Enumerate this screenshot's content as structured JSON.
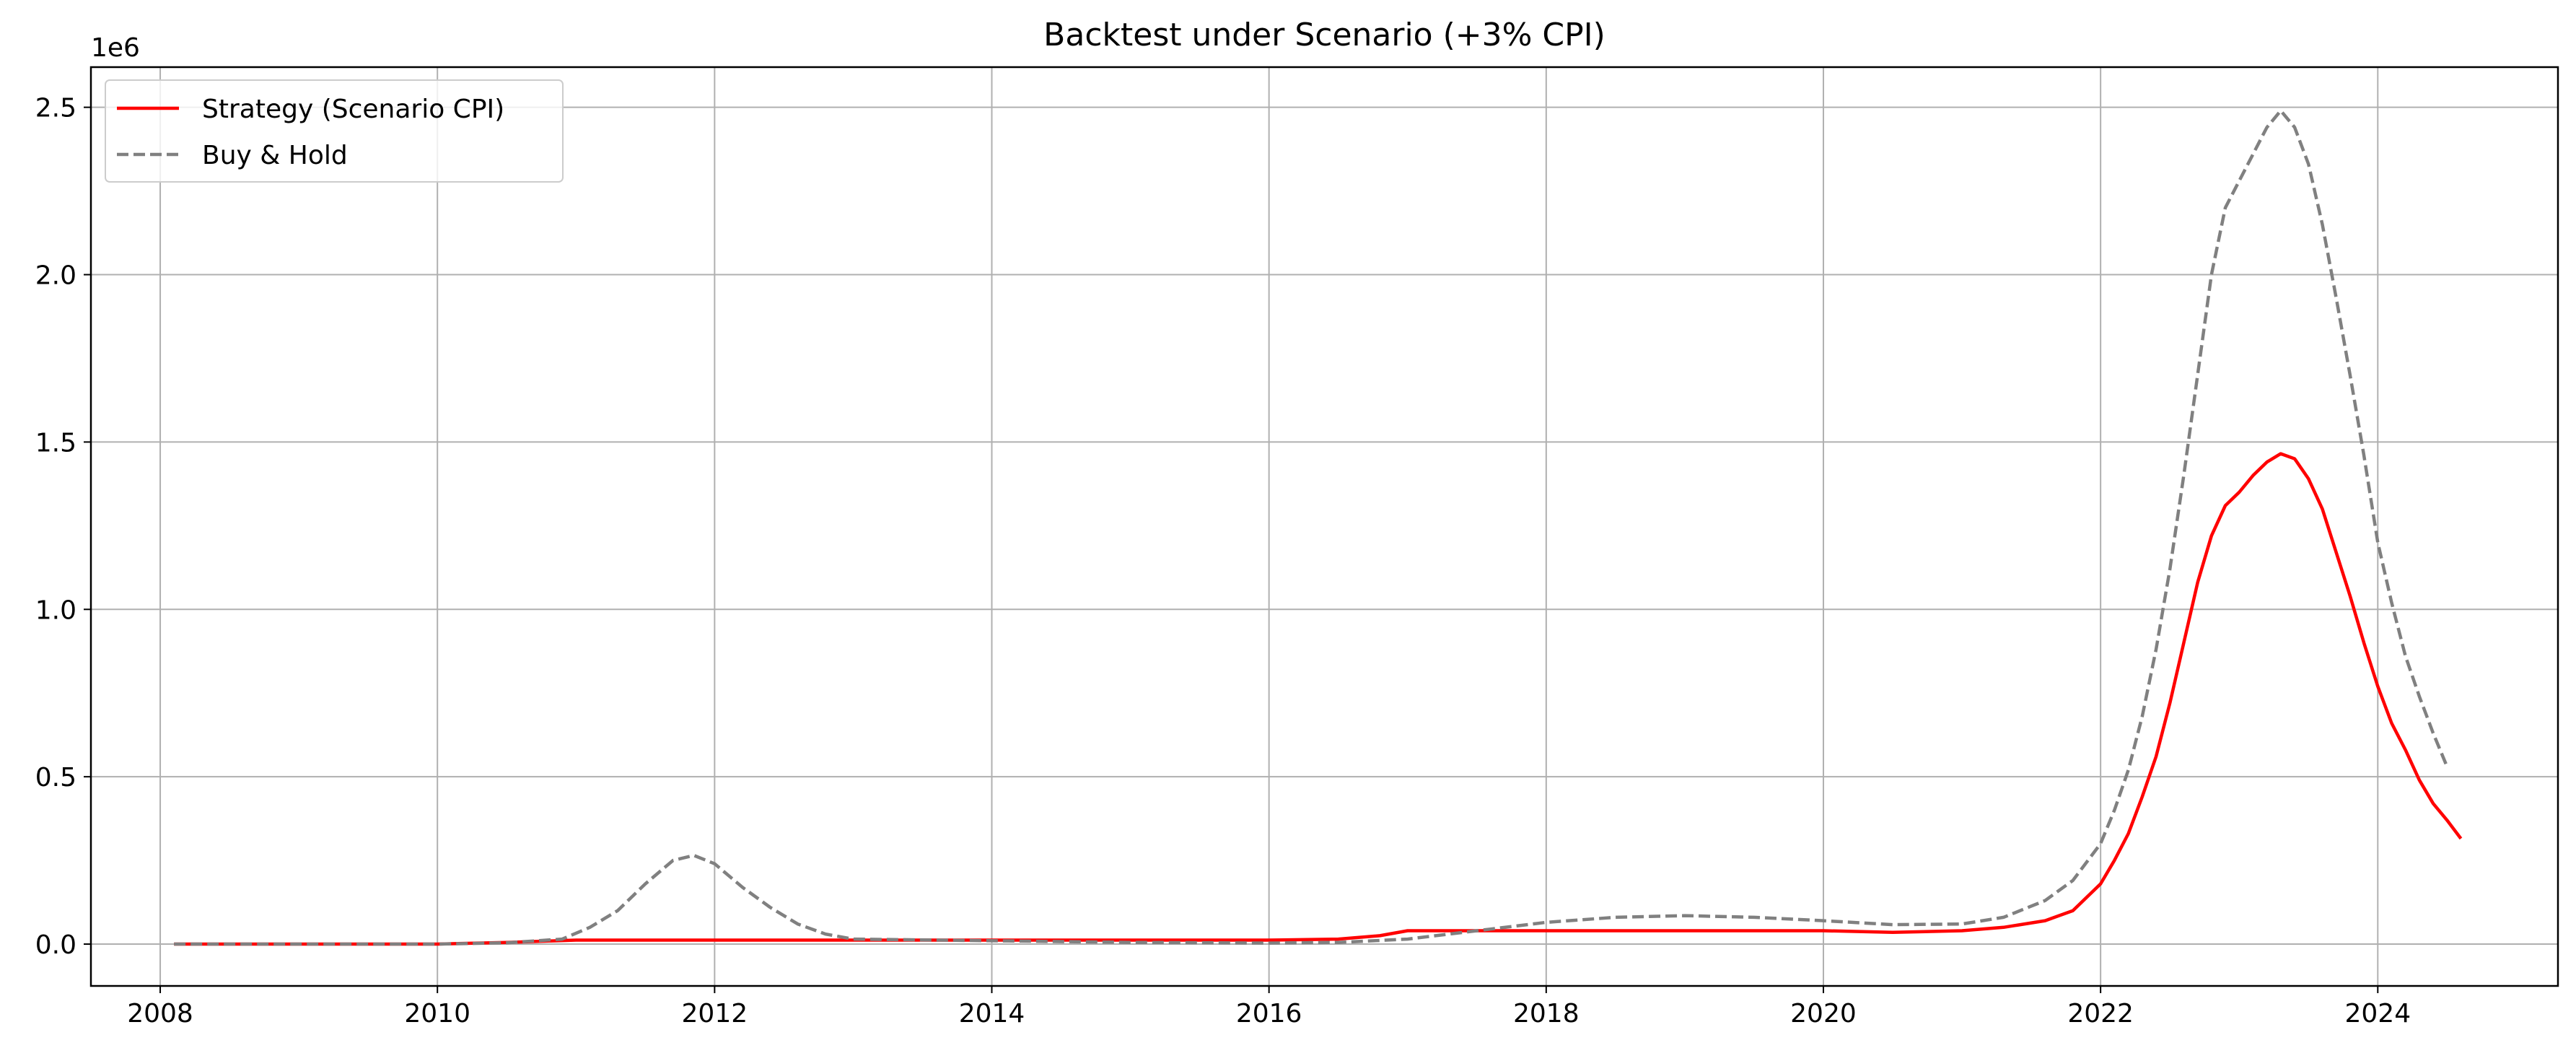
{
  "chart_data": {
    "type": "line",
    "title": "Backtest under Scenario (+3% CPI)",
    "xlabel": "",
    "ylabel": "",
    "y_offset_label": "1e6",
    "xlim": [
      2007.5,
      2025.3
    ],
    "ylim": [
      -0.125,
      2.62
    ],
    "x_ticks": [
      2008,
      2010,
      2012,
      2014,
      2016,
      2018,
      2020,
      2022,
      2024
    ],
    "y_ticks": [
      0.0,
      0.5,
      1.0,
      1.5,
      2.0,
      2.5
    ],
    "x_tick_labels": [
      "2008",
      "2010",
      "2012",
      "2014",
      "2016",
      "2018",
      "2020",
      "2022",
      "2024"
    ],
    "y_tick_labels": [
      "0.0",
      "0.5",
      "1.0",
      "1.5",
      "2.0",
      "2.5"
    ],
    "grid": true,
    "legend_position": "top-left",
    "series": [
      {
        "name": "Strategy (Scenario CPI)",
        "color": "#ff0000",
        "dash": "solid",
        "points": [
          [
            2008.1,
            0.0
          ],
          [
            2009.0,
            0.0
          ],
          [
            2010.0,
            0.0
          ],
          [
            2010.5,
            0.005
          ],
          [
            2011.0,
            0.012
          ],
          [
            2012.0,
            0.012
          ],
          [
            2014.0,
            0.012
          ],
          [
            2016.0,
            0.012
          ],
          [
            2016.5,
            0.015
          ],
          [
            2016.8,
            0.025
          ],
          [
            2017.0,
            0.04
          ],
          [
            2018.0,
            0.04
          ],
          [
            2019.0,
            0.04
          ],
          [
            2020.0,
            0.04
          ],
          [
            2020.5,
            0.035
          ],
          [
            2021.0,
            0.04
          ],
          [
            2021.3,
            0.05
          ],
          [
            2021.6,
            0.07
          ],
          [
            2021.8,
            0.1
          ],
          [
            2022.0,
            0.18
          ],
          [
            2022.1,
            0.25
          ],
          [
            2022.2,
            0.33
          ],
          [
            2022.3,
            0.44
          ],
          [
            2022.4,
            0.56
          ],
          [
            2022.5,
            0.72
          ],
          [
            2022.6,
            0.9
          ],
          [
            2022.7,
            1.08
          ],
          [
            2022.8,
            1.22
          ],
          [
            2022.9,
            1.31
          ],
          [
            2023.0,
            1.35
          ],
          [
            2023.1,
            1.4
          ],
          [
            2023.2,
            1.44
          ],
          [
            2023.3,
            1.465
          ],
          [
            2023.4,
            1.45
          ],
          [
            2023.5,
            1.39
          ],
          [
            2023.6,
            1.3
          ],
          [
            2023.7,
            1.17
          ],
          [
            2023.8,
            1.04
          ],
          [
            2023.9,
            0.9
          ],
          [
            2024.0,
            0.77
          ],
          [
            2024.1,
            0.66
          ],
          [
            2024.2,
            0.58
          ],
          [
            2024.3,
            0.49
          ],
          [
            2024.4,
            0.42
          ],
          [
            2024.5,
            0.37
          ],
          [
            2024.6,
            0.315
          ]
        ]
      },
      {
        "name": "Buy & Hold",
        "color": "#808080",
        "dash": "dashed",
        "points": [
          [
            2008.1,
            0.0
          ],
          [
            2009.0,
            0.0
          ],
          [
            2010.0,
            0.0
          ],
          [
            2010.5,
            0.004
          ],
          [
            2010.9,
            0.015
          ],
          [
            2011.1,
            0.05
          ],
          [
            2011.3,
            0.1
          ],
          [
            2011.5,
            0.18
          ],
          [
            2011.7,
            0.25
          ],
          [
            2011.85,
            0.265
          ],
          [
            2012.0,
            0.24
          ],
          [
            2012.2,
            0.17
          ],
          [
            2012.4,
            0.11
          ],
          [
            2012.6,
            0.06
          ],
          [
            2012.8,
            0.03
          ],
          [
            2013.0,
            0.015
          ],
          [
            2014.0,
            0.01
          ],
          [
            2015.0,
            0.005
          ],
          [
            2016.0,
            0.003
          ],
          [
            2016.5,
            0.005
          ],
          [
            2017.0,
            0.015
          ],
          [
            2017.3,
            0.03
          ],
          [
            2017.6,
            0.045
          ],
          [
            2018.0,
            0.065
          ],
          [
            2018.5,
            0.08
          ],
          [
            2019.0,
            0.085
          ],
          [
            2019.5,
            0.08
          ],
          [
            2020.0,
            0.07
          ],
          [
            2020.5,
            0.058
          ],
          [
            2021.0,
            0.06
          ],
          [
            2021.3,
            0.08
          ],
          [
            2021.6,
            0.13
          ],
          [
            2021.8,
            0.19
          ],
          [
            2022.0,
            0.3
          ],
          [
            2022.1,
            0.4
          ],
          [
            2022.2,
            0.52
          ],
          [
            2022.3,
            0.68
          ],
          [
            2022.4,
            0.88
          ],
          [
            2022.5,
            1.12
          ],
          [
            2022.6,
            1.4
          ],
          [
            2022.7,
            1.7
          ],
          [
            2022.8,
            2.0
          ],
          [
            2022.9,
            2.2
          ],
          [
            2023.0,
            2.28
          ],
          [
            2023.1,
            2.36
          ],
          [
            2023.2,
            2.44
          ],
          [
            2023.3,
            2.49
          ],
          [
            2023.4,
            2.44
          ],
          [
            2023.5,
            2.33
          ],
          [
            2023.6,
            2.15
          ],
          [
            2023.7,
            1.93
          ],
          [
            2023.8,
            1.7
          ],
          [
            2023.9,
            1.46
          ],
          [
            2024.0,
            1.2
          ],
          [
            2024.1,
            1.02
          ],
          [
            2024.2,
            0.86
          ],
          [
            2024.3,
            0.74
          ],
          [
            2024.4,
            0.63
          ],
          [
            2024.5,
            0.53
          ]
        ]
      }
    ]
  }
}
